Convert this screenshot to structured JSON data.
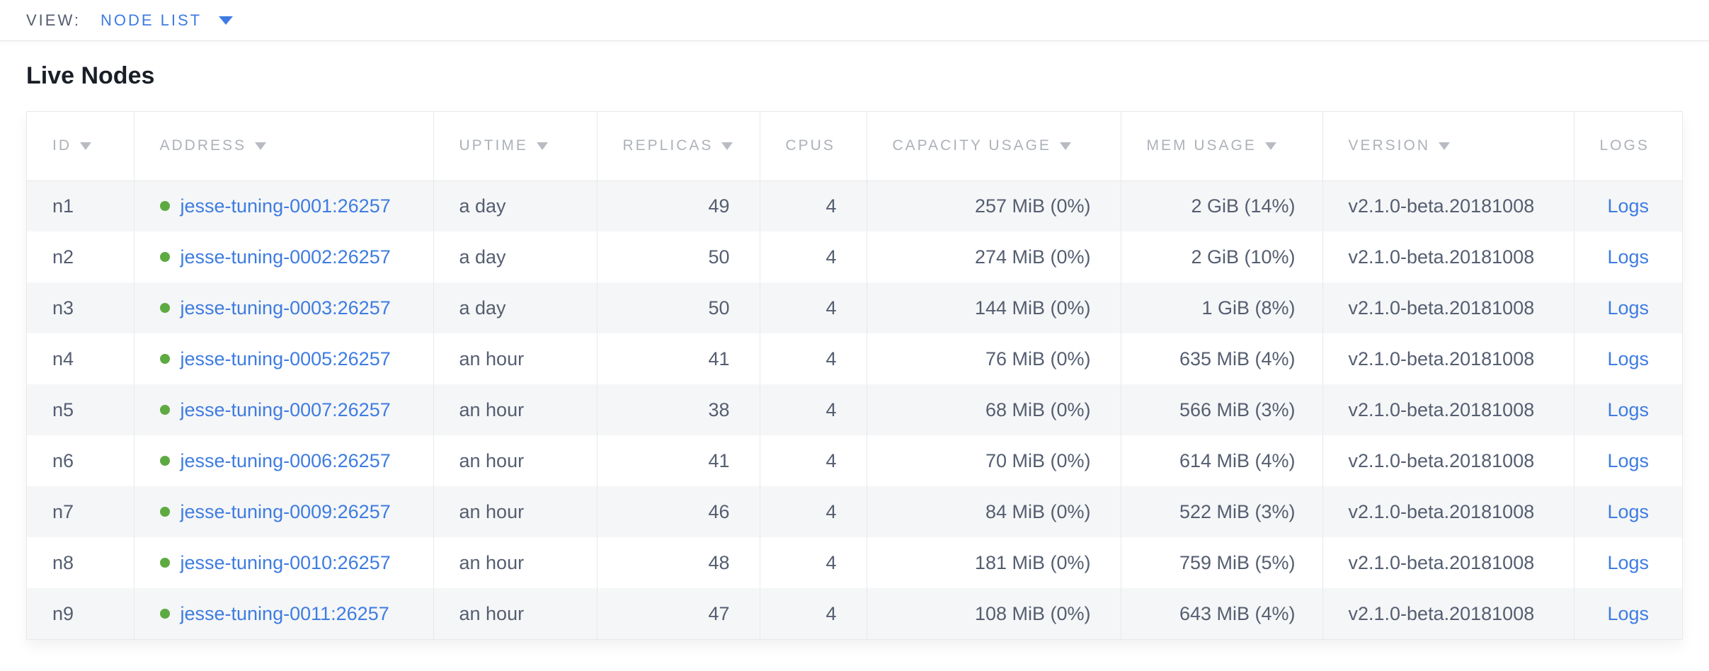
{
  "view_bar": {
    "label": "VIEW:",
    "selected": "NODE LIST"
  },
  "page": {
    "title": "Live Nodes"
  },
  "colors": {
    "accent_blue": "#3e7ce2",
    "healthy_green": "#5eaa42",
    "header_gray": "#adb2b9",
    "body_text": "#555e71",
    "border": "#e8e9eb",
    "row_alt_bg": "#f5f6f7"
  },
  "icons": {
    "view_dropdown": "chevron-down-icon",
    "sort_indicator": "triangle-down-icon",
    "node_status": "green-dot-icon"
  },
  "table": {
    "columns": [
      {
        "key": "id",
        "label": "ID",
        "sortable": true
      },
      {
        "key": "address",
        "label": "ADDRESS",
        "sortable": true
      },
      {
        "key": "uptime",
        "label": "UPTIME",
        "sortable": true
      },
      {
        "key": "replicas",
        "label": "REPLICAS",
        "sortable": true
      },
      {
        "key": "cpus",
        "label": "CPUS",
        "sortable": false
      },
      {
        "key": "capacity",
        "label": "CAPACITY USAGE",
        "sortable": true
      },
      {
        "key": "mem",
        "label": "MEM USAGE",
        "sortable": true
      },
      {
        "key": "version",
        "label": "VERSION",
        "sortable": true
      },
      {
        "key": "logs",
        "label": "LOGS",
        "sortable": false
      }
    ],
    "rows": [
      {
        "id": "n1",
        "status": "live",
        "address": "jesse-tuning-0001:26257",
        "uptime": "a day",
        "replicas": "49",
        "cpus": "4",
        "capacity": "257 MiB (0%)",
        "mem": "2 GiB (14%)",
        "version": "v2.1.0-beta.20181008",
        "logs": "Logs"
      },
      {
        "id": "n2",
        "status": "live",
        "address": "jesse-tuning-0002:26257",
        "uptime": "a day",
        "replicas": "50",
        "cpus": "4",
        "capacity": "274 MiB (0%)",
        "mem": "2 GiB (10%)",
        "version": "v2.1.0-beta.20181008",
        "logs": "Logs"
      },
      {
        "id": "n3",
        "status": "live",
        "address": "jesse-tuning-0003:26257",
        "uptime": "a day",
        "replicas": "50",
        "cpus": "4",
        "capacity": "144 MiB (0%)",
        "mem": "1 GiB (8%)",
        "version": "v2.1.0-beta.20181008",
        "logs": "Logs"
      },
      {
        "id": "n4",
        "status": "live",
        "address": "jesse-tuning-0005:26257",
        "uptime": "an hour",
        "replicas": "41",
        "cpus": "4",
        "capacity": "76 MiB (0%)",
        "mem": "635 MiB (4%)",
        "version": "v2.1.0-beta.20181008",
        "logs": "Logs"
      },
      {
        "id": "n5",
        "status": "live",
        "address": "jesse-tuning-0007:26257",
        "uptime": "an hour",
        "replicas": "38",
        "cpus": "4",
        "capacity": "68 MiB (0%)",
        "mem": "566 MiB (3%)",
        "version": "v2.1.0-beta.20181008",
        "logs": "Logs"
      },
      {
        "id": "n6",
        "status": "live",
        "address": "jesse-tuning-0006:26257",
        "uptime": "an hour",
        "replicas": "41",
        "cpus": "4",
        "capacity": "70 MiB (0%)",
        "mem": "614 MiB (4%)",
        "version": "v2.1.0-beta.20181008",
        "logs": "Logs"
      },
      {
        "id": "n7",
        "status": "live",
        "address": "jesse-tuning-0009:26257",
        "uptime": "an hour",
        "replicas": "46",
        "cpus": "4",
        "capacity": "84 MiB (0%)",
        "mem": "522 MiB (3%)",
        "version": "v2.1.0-beta.20181008",
        "logs": "Logs"
      },
      {
        "id": "n8",
        "status": "live",
        "address": "jesse-tuning-0010:26257",
        "uptime": "an hour",
        "replicas": "48",
        "cpus": "4",
        "capacity": "181 MiB (0%)",
        "mem": "759 MiB (5%)",
        "version": "v2.1.0-beta.20181008",
        "logs": "Logs"
      },
      {
        "id": "n9",
        "status": "live",
        "address": "jesse-tuning-0011:26257",
        "uptime": "an hour",
        "replicas": "47",
        "cpus": "4",
        "capacity": "108 MiB (0%)",
        "mem": "643 MiB (4%)",
        "version": "v2.1.0-beta.20181008",
        "logs": "Logs"
      }
    ]
  }
}
